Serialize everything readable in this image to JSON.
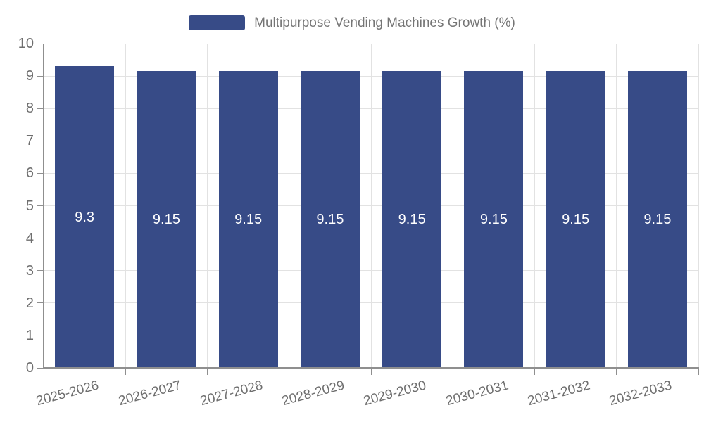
{
  "chart_data": {
    "type": "bar",
    "title": "Multipurpose Vending Machines Growth (%)",
    "legend": [
      "Multipurpose Vending Machines Growth (%)"
    ],
    "legend_position": "top-center",
    "categories": [
      "2025-2026",
      "2026-2027",
      "2027-2028",
      "2028-2029",
      "2029-2030",
      "2030-2031",
      "2031-2032",
      "2032-2033"
    ],
    "series": [
      {
        "name": "Multipurpose Vending Machines Growth (%)",
        "values": [
          9.3,
          9.15,
          9.15,
          9.15,
          9.15,
          9.15,
          9.15,
          9.15
        ],
        "value_labels": [
          "9.3",
          "9.15",
          "9.15",
          "9.15",
          "9.15",
          "9.15",
          "9.15",
          "9.15"
        ]
      }
    ],
    "xlabel": "",
    "ylabel": "",
    "ylim": [
      0,
      10
    ],
    "yticks": [
      0,
      1,
      2,
      3,
      4,
      5,
      6,
      7,
      8,
      9,
      10
    ],
    "grid": true,
    "value_labels_position": "inside-middle",
    "colors": {
      "bar": "#374b87",
      "grid": "#e2e2e2",
      "axis": "#8f8f8f",
      "tick_text": "#6e6e6e",
      "legend_text": "#757575",
      "value_label": "#ffffff",
      "background": "#ffffff"
    }
  }
}
